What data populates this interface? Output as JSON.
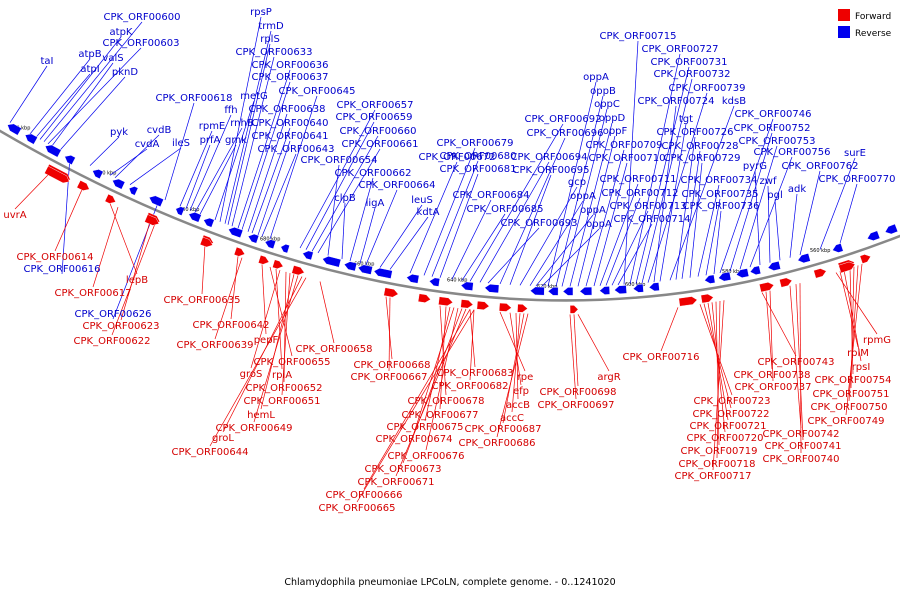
{
  "caption": "Chlamydophila pneumoniae LPCoLN, complete genome. - 0..1241020",
  "legend": [
    {
      "label": "Forward",
      "color": "#ee0000"
    },
    {
      "label": "Reverse",
      "color": "#0000ee"
    }
  ],
  "colors": {
    "forward": "#ee0000",
    "reverse": "#0000ee",
    "backbone": "#888888"
  },
  "ticks": [
    "740 kbp",
    "720 kbp",
    "700 kbp",
    "680 kbp",
    "660 kbp",
    "640 kbp",
    "620 kbp",
    "600 kbp",
    "580 kbp",
    "560 kbp"
  ],
  "reverse_labels": [
    "taI",
    "atpB",
    "atpI",
    "atpK",
    "CPK_ORF00600",
    "CPK_ORF00603",
    "valS",
    "pknD",
    "pyk",
    "cvdA",
    "cvdB",
    "ileS",
    "CPK_ORF00618",
    "rpmE",
    "prfA",
    "ffh",
    "rnhB",
    "gmk",
    "metG",
    "rpsP",
    "trmD",
    "rplS",
    "CPK_ORF00633",
    "CPK_ORF00636",
    "CPK_ORF00637",
    "CPK_ORF00638",
    "CPK_ORF00640",
    "CPK_ORF00641",
    "CPK_ORF00643",
    "CPK_ORF00645",
    "CPK_ORF00657",
    "CPK_ORF00659",
    "CPK_ORF00660",
    "CPK_ORF00661",
    "CPK_ORF00654",
    "clpB",
    "CPK_ORF00662",
    "ligA",
    "CPK_ORF00664",
    "leuS",
    "kdtA",
    "CPK_ORF00672",
    "CPK_ORF00679",
    "CPK_ORF00680",
    "CPK_ORF00681",
    "CPK_ORF00684",
    "CPK_ORF00685",
    "CPK_ORF00692",
    "CPK_ORF00694",
    "CPK_ORF00693",
    "CPK_ORF00696",
    "CPK_ORF00695",
    "gcp",
    "oppA",
    "oppA",
    "oppA",
    "oppA",
    "oppB",
    "oppC",
    "oppD",
    "oppF",
    "CPK_ORF00709",
    "CPK_ORF00710",
    "CPK_ORF00711",
    "CPK_ORF00712",
    "CPK_ORF00713",
    "CPK_ORF00714",
    "CPK_ORF00715",
    "CPK_ORF00727",
    "CPK_ORF00731",
    "CPK_ORF00732",
    "CPK_ORF00739",
    "CPK_ORF00724",
    "tgt",
    "kdsB",
    "CPK_ORF00726",
    "CPK_ORF00728",
    "CPK_ORF00729",
    "CPK_ORF00734",
    "CPK_ORF00735",
    "CPK_ORF00736",
    "CPK_ORF00746",
    "CPK_ORF00752",
    "CPK_ORF00753",
    "CPK_ORF00756",
    "pyrG",
    "zwf",
    "pgl",
    "adk",
    "CPK_ORF00762",
    "surE",
    "CPK_ORF00770",
    "CPK_ORF00616",
    "CPK_ORF00626"
  ],
  "forward_labels": [
    "uvrA",
    "CPK_ORF00614",
    "lepB",
    "CPK_ORF00617",
    "CPK_ORF00623",
    "CPK_ORF00622",
    "CPK_ORF00635",
    "CPK_ORF00642",
    "CPK_ORF00639",
    "pepF",
    "CPK_ORF00655",
    "rpiA",
    "groS",
    "CPK_ORF00652",
    "CPK_ORF00651",
    "hemL",
    "CPK_ORF00649",
    "groL",
    "CPK_ORF00644",
    "CPK_ORF00658",
    "CPK_ORF00668",
    "CPK_ORF00667",
    "CPK_ORF00683",
    "CPK_ORF00682",
    "CPK_ORF00678",
    "CPK_ORF00677",
    "CPK_ORF00675",
    "CPK_ORF00674",
    "CPK_ORF00676",
    "CPK_ORF00673",
    "CPK_ORF00671",
    "CPK_ORF00666",
    "CPK_ORF00665",
    "rpe",
    "efp",
    "accB",
    "accC",
    "CPK_ORF00687",
    "CPK_ORF00686",
    "argR",
    "CPK_ORF00698",
    "CPK_ORF00697",
    "CPK_ORF00716",
    "CPK_ORF00723",
    "CPK_ORF00722",
    "CPK_ORF00721",
    "CPK_ORF00720",
    "CPK_ORF00719",
    "CPK_ORF00718",
    "CPK_ORF00717",
    "CPK_ORF00743",
    "CPK_ORF00738",
    "CPK_ORF00737",
    "CPK_ORF00742",
    "CPK_ORF00741",
    "CPK_ORF00740",
    "rpmG",
    "rplM",
    "rpsI",
    "CPK_ORF00754",
    "CPK_ORF00751",
    "CPK_ORF00750",
    "CPK_ORF00749"
  ]
}
